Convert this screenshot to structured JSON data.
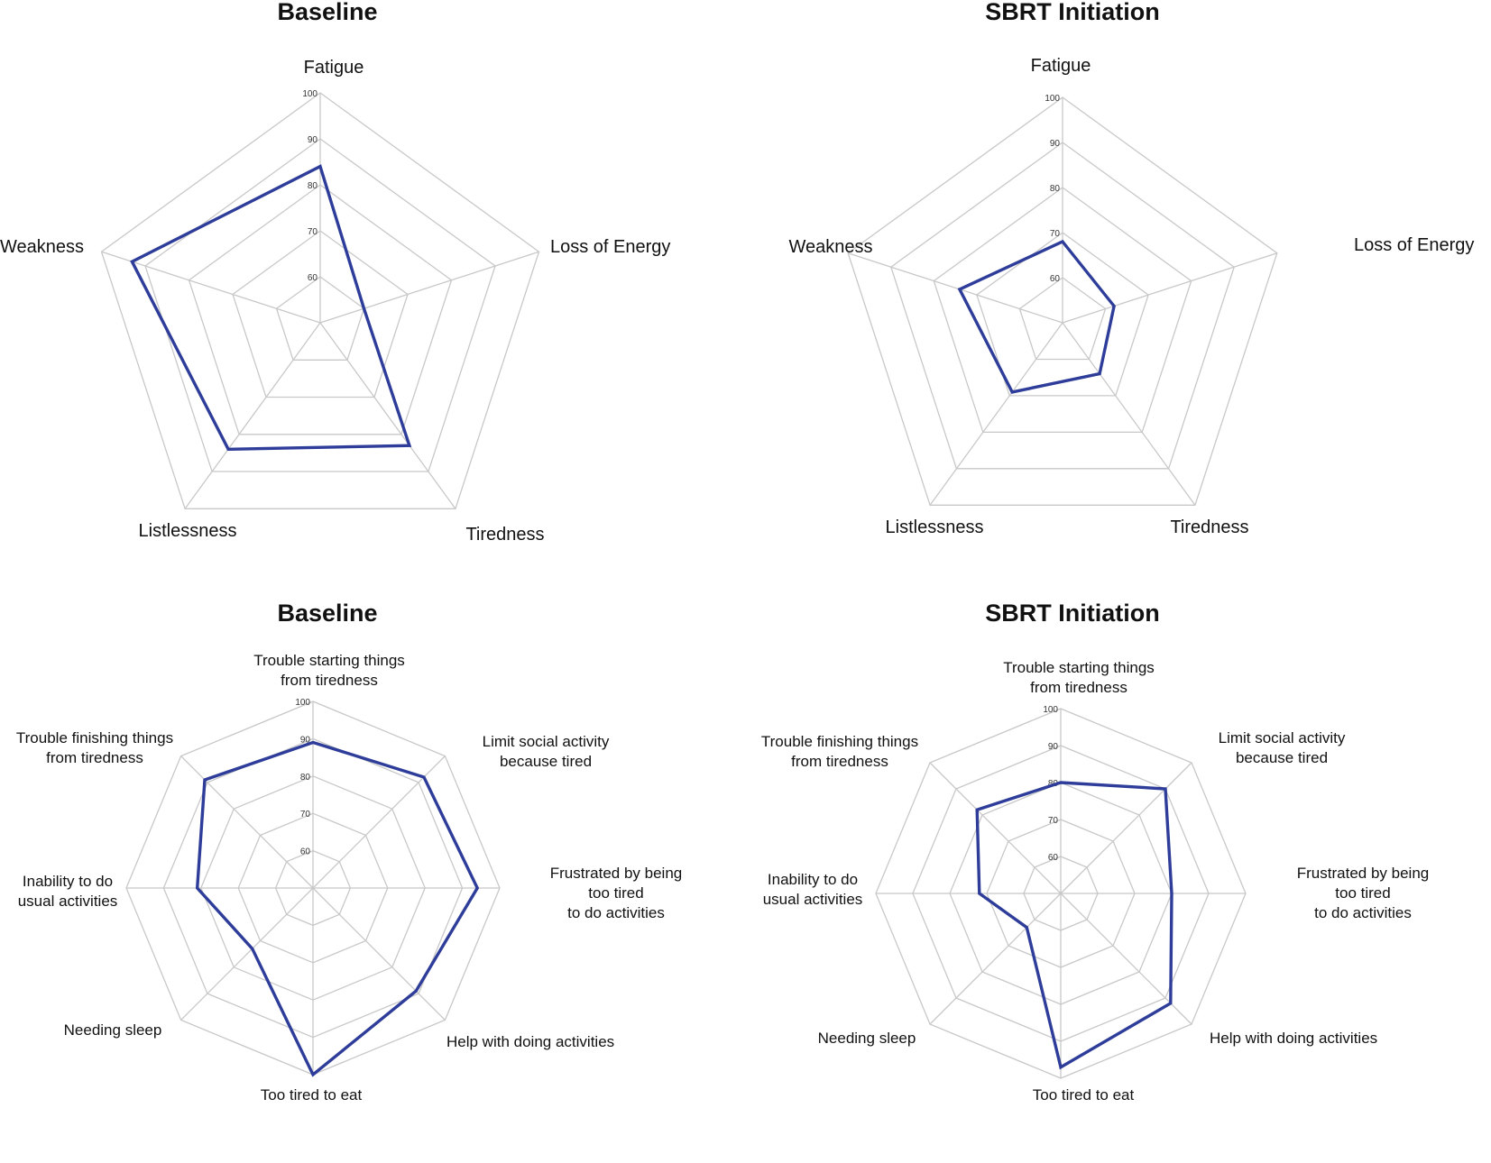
{
  "chart_data": [
    {
      "type": "radar",
      "title": "Baseline",
      "axes": [
        "Fatigue",
        "Loss of Energy",
        "Tiredness",
        "Listlessness",
        "Weakness"
      ],
      "values": [
        84,
        60,
        83,
        84,
        93
      ],
      "tick_labels": [
        "60",
        "70",
        "80",
        "90",
        "100"
      ],
      "rlim": [
        50,
        100
      ],
      "series_color": "#2e3d99"
    },
    {
      "type": "radar",
      "title": "SBRT Initiation",
      "axes": [
        "Fatigue",
        "Loss of Energy",
        "Tiredness",
        "Listlessness",
        "Weakness"
      ],
      "values": [
        68,
        62,
        64,
        69,
        74
      ],
      "tick_labels": [
        "60",
        "70",
        "80",
        "90",
        "100"
      ],
      "rlim": [
        50,
        100
      ],
      "series_color": "#2e3d99"
    },
    {
      "type": "radar",
      "title": "Baseline",
      "axes": [
        "Trouble starting things\nfrom tiredness",
        "Limit social activity\nbecause tired",
        "Frustrated by being\ntoo tired\nto do activities",
        "Help with doing activities",
        "Too tired to eat",
        "Needing sleep",
        "Inability to do\nusual activities",
        "Trouble finishing things\nfrom tiredness"
      ],
      "values": [
        89,
        92,
        94,
        89,
        100,
        73,
        81,
        91
      ],
      "tick_labels": [
        "60",
        "70",
        "80",
        "90",
        "100"
      ],
      "rlim": [
        50,
        100
      ],
      "series_color": "#2e3d99"
    },
    {
      "type": "radar",
      "title": "SBRT Initiation",
      "axes": [
        "Trouble starting things\nfrom tiredness",
        "Limit social activity\nbecause tired",
        "Frustrated by being\ntoo tired\nto do activities",
        "Help with doing activities",
        "Too tired to eat",
        "Needing sleep",
        "Inability to do\nusual activities",
        "Trouble finishing things\nfrom tiredness"
      ],
      "values": [
        80,
        90,
        80,
        92,
        97,
        63,
        72,
        82
      ],
      "tick_labels": [
        "60",
        "70",
        "80",
        "90",
        "100"
      ],
      "rlim": [
        50,
        100
      ],
      "series_color": "#2e3d99"
    }
  ]
}
